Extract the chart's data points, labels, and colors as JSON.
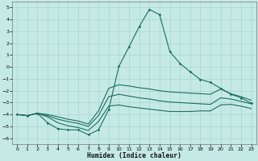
{
  "xlabel": "Humidex (Indice chaleur)",
  "background_color": "#c5eae6",
  "grid_color": "#a8d4d0",
  "line_color": "#1a6e62",
  "xlim": [
    -0.5,
    23.5
  ],
  "ylim": [
    -6.5,
    5.5
  ],
  "xticks": [
    0,
    1,
    2,
    3,
    4,
    5,
    6,
    7,
    8,
    9,
    10,
    11,
    12,
    13,
    14,
    15,
    16,
    17,
    18,
    19,
    20,
    21,
    22,
    23
  ],
  "yticks": [
    -6,
    -5,
    -4,
    -3,
    -2,
    -1,
    0,
    1,
    2,
    3,
    4,
    5
  ],
  "x": [
    0,
    1,
    2,
    3,
    4,
    5,
    6,
    7,
    8,
    9,
    10,
    11,
    12,
    13,
    14,
    15,
    16,
    17,
    18,
    19,
    20,
    21,
    22,
    23
  ],
  "line_main": [
    -4.0,
    -4.1,
    -3.9,
    -4.7,
    -5.2,
    -5.3,
    -5.3,
    -5.7,
    -5.3,
    -3.6,
    0.05,
    1.7,
    3.4,
    4.85,
    4.4,
    1.3,
    0.3,
    -0.4,
    -1.05,
    -1.3,
    -1.8,
    -2.3,
    -2.6,
    -3.05
  ],
  "line_upper": [
    -4.0,
    -4.1,
    -3.9,
    -4.0,
    -4.2,
    -4.4,
    -4.55,
    -4.8,
    -3.7,
    -1.8,
    -1.5,
    -1.6,
    -1.75,
    -1.85,
    -2.0,
    -2.1,
    -2.15,
    -2.2,
    -2.25,
    -2.3,
    -1.85,
    -2.25,
    -2.5,
    -2.8
  ],
  "line_middle": [
    -4.0,
    -4.1,
    -3.9,
    -4.1,
    -4.4,
    -4.6,
    -4.75,
    -5.0,
    -4.1,
    -2.5,
    -2.3,
    -2.45,
    -2.6,
    -2.7,
    -2.85,
    -2.95,
    -3.0,
    -3.05,
    -3.1,
    -3.15,
    -2.6,
    -2.7,
    -2.9,
    -3.1
  ],
  "line_lower": [
    -4.0,
    -4.1,
    -3.9,
    -4.2,
    -4.7,
    -4.95,
    -5.1,
    -5.35,
    -4.6,
    -3.3,
    -3.2,
    -3.35,
    -3.45,
    -3.55,
    -3.65,
    -3.75,
    -3.75,
    -3.75,
    -3.7,
    -3.7,
    -3.2,
    -3.15,
    -3.3,
    -3.5
  ]
}
